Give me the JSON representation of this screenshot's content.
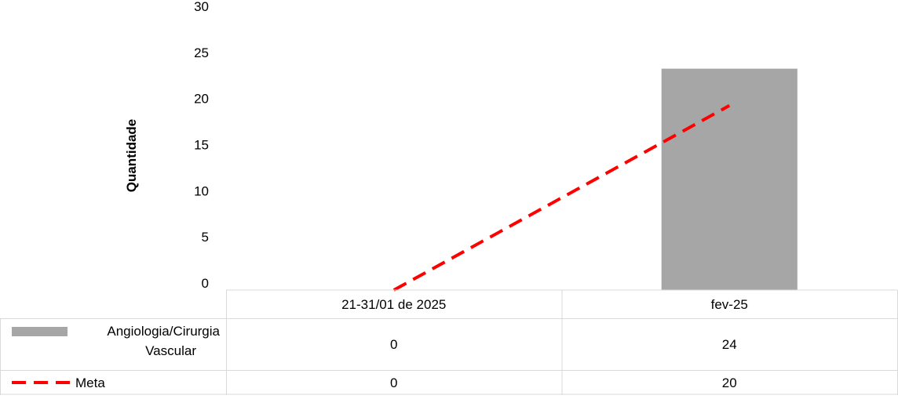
{
  "chart_data": {
    "type": "bar",
    "ylabel": "Quantidade",
    "ylim": [
      0,
      30
    ],
    "yticks": [
      0,
      5,
      10,
      15,
      20,
      25,
      30
    ],
    "categories": [
      "21-31/01 de 2025",
      "fev-25"
    ],
    "series": [
      {
        "name": "Angiologia/Cirurgia Vascular",
        "type": "bar",
        "color": "#a6a6a6",
        "values": [
          0,
          24
        ]
      },
      {
        "name": "Meta",
        "type": "line",
        "style": "dashed",
        "color": "#ff0000",
        "values": [
          0,
          20
        ]
      }
    ],
    "data_table": true,
    "gridlines": false,
    "legend": "data-table"
  }
}
